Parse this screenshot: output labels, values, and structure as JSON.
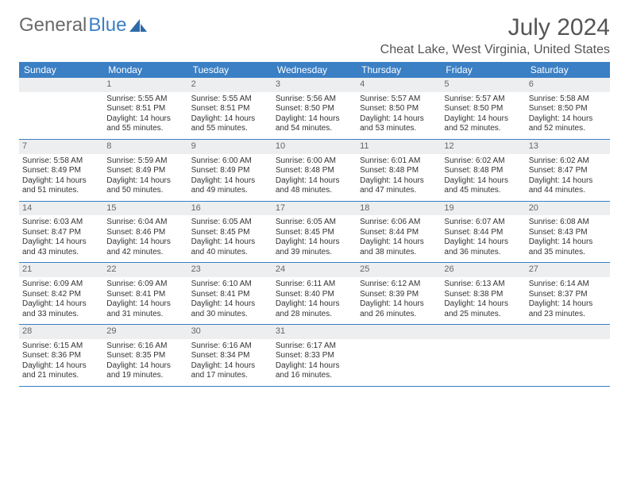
{
  "logo": {
    "text1": "General",
    "text2": "Blue"
  },
  "title": "July 2024",
  "location": "Cheat Lake, West Virginia, United States",
  "colors": {
    "header_bg": "#3b7fc4",
    "header_text": "#ffffff",
    "daynum_bg": "#eceeef"
  },
  "weekdays": [
    "Sunday",
    "Monday",
    "Tuesday",
    "Wednesday",
    "Thursday",
    "Friday",
    "Saturday"
  ],
  "weeks": [
    [
      null,
      {
        "n": "1",
        "sr": "Sunrise: 5:55 AM",
        "ss": "Sunset: 8:51 PM",
        "d1": "Daylight: 14 hours",
        "d2": "and 55 minutes."
      },
      {
        "n": "2",
        "sr": "Sunrise: 5:55 AM",
        "ss": "Sunset: 8:51 PM",
        "d1": "Daylight: 14 hours",
        "d2": "and 55 minutes."
      },
      {
        "n": "3",
        "sr": "Sunrise: 5:56 AM",
        "ss": "Sunset: 8:50 PM",
        "d1": "Daylight: 14 hours",
        "d2": "and 54 minutes."
      },
      {
        "n": "4",
        "sr": "Sunrise: 5:57 AM",
        "ss": "Sunset: 8:50 PM",
        "d1": "Daylight: 14 hours",
        "d2": "and 53 minutes."
      },
      {
        "n": "5",
        "sr": "Sunrise: 5:57 AM",
        "ss": "Sunset: 8:50 PM",
        "d1": "Daylight: 14 hours",
        "d2": "and 52 minutes."
      },
      {
        "n": "6",
        "sr": "Sunrise: 5:58 AM",
        "ss": "Sunset: 8:50 PM",
        "d1": "Daylight: 14 hours",
        "d2": "and 52 minutes."
      }
    ],
    [
      {
        "n": "7",
        "sr": "Sunrise: 5:58 AM",
        "ss": "Sunset: 8:49 PM",
        "d1": "Daylight: 14 hours",
        "d2": "and 51 minutes."
      },
      {
        "n": "8",
        "sr": "Sunrise: 5:59 AM",
        "ss": "Sunset: 8:49 PM",
        "d1": "Daylight: 14 hours",
        "d2": "and 50 minutes."
      },
      {
        "n": "9",
        "sr": "Sunrise: 6:00 AM",
        "ss": "Sunset: 8:49 PM",
        "d1": "Daylight: 14 hours",
        "d2": "and 49 minutes."
      },
      {
        "n": "10",
        "sr": "Sunrise: 6:00 AM",
        "ss": "Sunset: 8:48 PM",
        "d1": "Daylight: 14 hours",
        "d2": "and 48 minutes."
      },
      {
        "n": "11",
        "sr": "Sunrise: 6:01 AM",
        "ss": "Sunset: 8:48 PM",
        "d1": "Daylight: 14 hours",
        "d2": "and 47 minutes."
      },
      {
        "n": "12",
        "sr": "Sunrise: 6:02 AM",
        "ss": "Sunset: 8:48 PM",
        "d1": "Daylight: 14 hours",
        "d2": "and 45 minutes."
      },
      {
        "n": "13",
        "sr": "Sunrise: 6:02 AM",
        "ss": "Sunset: 8:47 PM",
        "d1": "Daylight: 14 hours",
        "d2": "and 44 minutes."
      }
    ],
    [
      {
        "n": "14",
        "sr": "Sunrise: 6:03 AM",
        "ss": "Sunset: 8:47 PM",
        "d1": "Daylight: 14 hours",
        "d2": "and 43 minutes."
      },
      {
        "n": "15",
        "sr": "Sunrise: 6:04 AM",
        "ss": "Sunset: 8:46 PM",
        "d1": "Daylight: 14 hours",
        "d2": "and 42 minutes."
      },
      {
        "n": "16",
        "sr": "Sunrise: 6:05 AM",
        "ss": "Sunset: 8:45 PM",
        "d1": "Daylight: 14 hours",
        "d2": "and 40 minutes."
      },
      {
        "n": "17",
        "sr": "Sunrise: 6:05 AM",
        "ss": "Sunset: 8:45 PM",
        "d1": "Daylight: 14 hours",
        "d2": "and 39 minutes."
      },
      {
        "n": "18",
        "sr": "Sunrise: 6:06 AM",
        "ss": "Sunset: 8:44 PM",
        "d1": "Daylight: 14 hours",
        "d2": "and 38 minutes."
      },
      {
        "n": "19",
        "sr": "Sunrise: 6:07 AM",
        "ss": "Sunset: 8:44 PM",
        "d1": "Daylight: 14 hours",
        "d2": "and 36 minutes."
      },
      {
        "n": "20",
        "sr": "Sunrise: 6:08 AM",
        "ss": "Sunset: 8:43 PM",
        "d1": "Daylight: 14 hours",
        "d2": "and 35 minutes."
      }
    ],
    [
      {
        "n": "21",
        "sr": "Sunrise: 6:09 AM",
        "ss": "Sunset: 8:42 PM",
        "d1": "Daylight: 14 hours",
        "d2": "and 33 minutes."
      },
      {
        "n": "22",
        "sr": "Sunrise: 6:09 AM",
        "ss": "Sunset: 8:41 PM",
        "d1": "Daylight: 14 hours",
        "d2": "and 31 minutes."
      },
      {
        "n": "23",
        "sr": "Sunrise: 6:10 AM",
        "ss": "Sunset: 8:41 PM",
        "d1": "Daylight: 14 hours",
        "d2": "and 30 minutes."
      },
      {
        "n": "24",
        "sr": "Sunrise: 6:11 AM",
        "ss": "Sunset: 8:40 PM",
        "d1": "Daylight: 14 hours",
        "d2": "and 28 minutes."
      },
      {
        "n": "25",
        "sr": "Sunrise: 6:12 AM",
        "ss": "Sunset: 8:39 PM",
        "d1": "Daylight: 14 hours",
        "d2": "and 26 minutes."
      },
      {
        "n": "26",
        "sr": "Sunrise: 6:13 AM",
        "ss": "Sunset: 8:38 PM",
        "d1": "Daylight: 14 hours",
        "d2": "and 25 minutes."
      },
      {
        "n": "27",
        "sr": "Sunrise: 6:14 AM",
        "ss": "Sunset: 8:37 PM",
        "d1": "Daylight: 14 hours",
        "d2": "and 23 minutes."
      }
    ],
    [
      {
        "n": "28",
        "sr": "Sunrise: 6:15 AM",
        "ss": "Sunset: 8:36 PM",
        "d1": "Daylight: 14 hours",
        "d2": "and 21 minutes."
      },
      {
        "n": "29",
        "sr": "Sunrise: 6:16 AM",
        "ss": "Sunset: 8:35 PM",
        "d1": "Daylight: 14 hours",
        "d2": "and 19 minutes."
      },
      {
        "n": "30",
        "sr": "Sunrise: 6:16 AM",
        "ss": "Sunset: 8:34 PM",
        "d1": "Daylight: 14 hours",
        "d2": "and 17 minutes."
      },
      {
        "n": "31",
        "sr": "Sunrise: 6:17 AM",
        "ss": "Sunset: 8:33 PM",
        "d1": "Daylight: 14 hours",
        "d2": "and 16 minutes."
      },
      null,
      null,
      null
    ]
  ]
}
